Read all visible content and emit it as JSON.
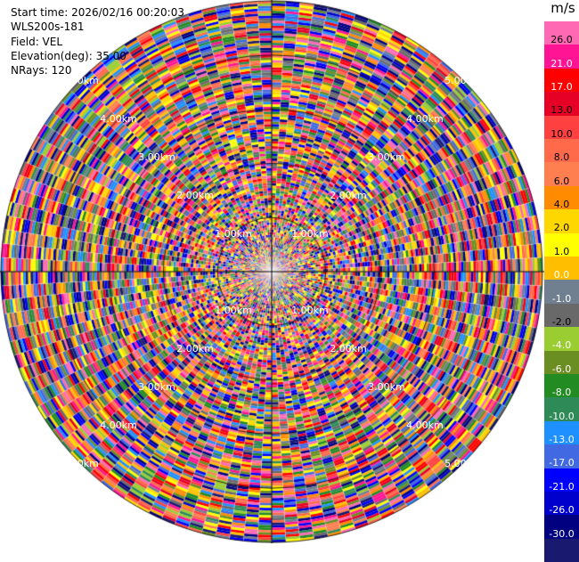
{
  "info": {
    "start_time": "Start time: 2026/02/16 00:20:03",
    "instrument": "WLS200s-181",
    "field": "Field: VEL",
    "elevation": "Elevation(deg): 35.00",
    "nrays": "NRays: 120"
  },
  "chart_data": {
    "type": "heatmap",
    "projection": "polar-ppi",
    "n_rays": 120,
    "range_ring_labels": [
      "1.00km",
      "2.00km",
      "3.00km",
      "4.00km",
      "5.00km"
    ],
    "colorbar": {
      "unit": "m/s",
      "levels": [
        "26.0",
        "21.0",
        "17.0",
        "13.0",
        "10.0",
        "8.0",
        "6.0",
        "4.0",
        "2.0",
        "1.0",
        "0.0",
        "-1.0",
        "-2.0",
        "-4.0",
        "-6.0",
        "-8.0",
        "-10.0",
        "-13.0",
        "-17.0",
        "-21.0",
        "-26.0",
        "-30.0"
      ],
      "colors": [
        "#ff69b4",
        "#ff1493",
        "#ff0000",
        "#e60026",
        "#ff4040",
        "#ff6a4a",
        "#ff7f50",
        "#ff8c00",
        "#ffd700",
        "#ffff00",
        "#ffbf00",
        "#708090",
        "#696969",
        "#9acd32",
        "#6b8e23",
        "#228b22",
        "#2e8b57",
        "#1e90ff",
        "#4169e1",
        "#0000ff",
        "#0000cd",
        "#000080",
        "#191970"
      ]
    }
  }
}
